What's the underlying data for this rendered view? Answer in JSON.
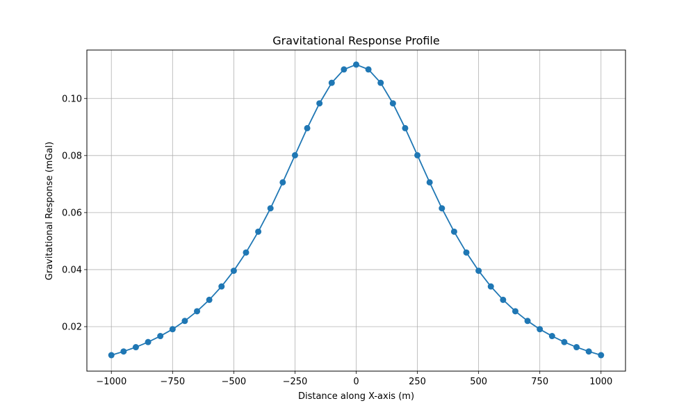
{
  "chart_data": {
    "type": "line",
    "title": "Gravitational Response Profile",
    "xlabel": "Distance along X-axis (m)",
    "ylabel": "Gravitational Response (mGal)",
    "xlim": [
      -1100,
      1100
    ],
    "ylim": [
      0.0044,
      0.117
    ],
    "xticks": [
      -1000,
      -750,
      -500,
      -250,
      0,
      250,
      500,
      750,
      1000
    ],
    "xtick_labels": [
      "−1000",
      "−750",
      "−500",
      "−250",
      "0",
      "250",
      "500",
      "750",
      "1000"
    ],
    "yticks": [
      0.02,
      0.04,
      0.06,
      0.08,
      0.1
    ],
    "ytick_labels": [
      "0.02",
      "0.04",
      "0.06",
      "0.08",
      "0.10"
    ],
    "grid": true,
    "legend": null,
    "series": [
      {
        "name": "Gravitational Response",
        "color": "#1f77b4",
        "marker": "circle",
        "x": [
          -1000,
          -950,
          -900,
          -850,
          -800,
          -750,
          -700,
          -650,
          -600,
          -550,
          -500,
          -450,
          -400,
          -350,
          -300,
          -250,
          -200,
          -150,
          -100,
          -50,
          0,
          50,
          100,
          150,
          200,
          250,
          300,
          350,
          400,
          450,
          500,
          550,
          600,
          650,
          700,
          750,
          800,
          850,
          900,
          950,
          1000
        ],
        "values": [
          0.01,
          0.0113,
          0.0128,
          0.0146,
          0.0167,
          0.0191,
          0.022,
          0.0254,
          0.0294,
          0.0341,
          0.0396,
          0.046,
          0.0533,
          0.0615,
          0.0706,
          0.0801,
          0.0896,
          0.0983,
          0.1055,
          0.1102,
          0.1119,
          0.1102,
          0.1055,
          0.0983,
          0.0896,
          0.0801,
          0.0706,
          0.0615,
          0.0533,
          0.046,
          0.0396,
          0.0341,
          0.0294,
          0.0254,
          0.022,
          0.0191,
          0.0167,
          0.0146,
          0.0128,
          0.0113,
          0.01
        ]
      }
    ]
  }
}
